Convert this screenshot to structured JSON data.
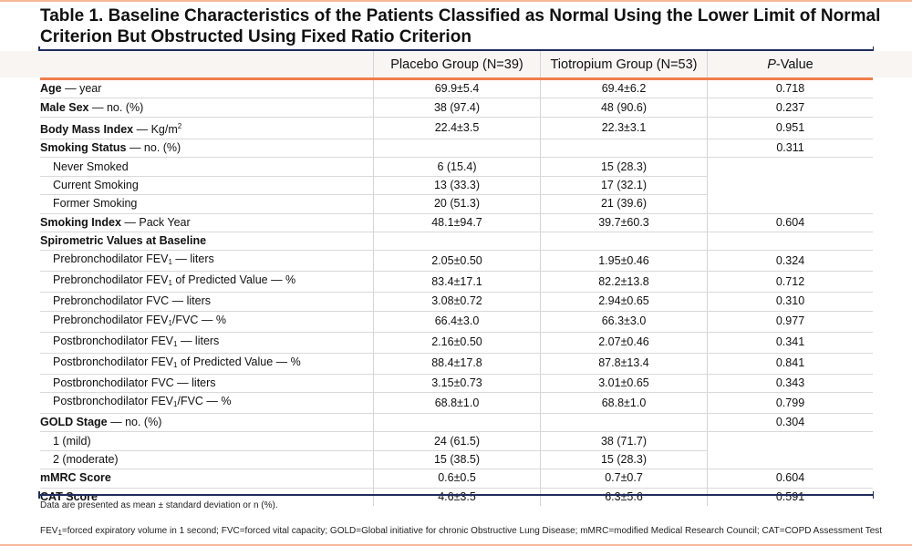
{
  "title": "Table 1. Baseline Characteristics of the Patients Classified as Normal Using the Lower Limit of Normal Criterion But Obstructed Using Fixed Ratio Criterion",
  "columns": {
    "label": "",
    "placebo": "Placebo Group (N=39)",
    "tiotropium": "Tiotropium Group (N=53)",
    "p_italic": "P",
    "p_rest": "-Value"
  },
  "rows": {
    "age": {
      "bold": "Age",
      "rest": " — year",
      "placebo": "69.9±5.4",
      "tiotropium": "69.4±6.2",
      "p": "0.718"
    },
    "male": {
      "bold": "Male Sex",
      "rest": " — no. (%)",
      "placebo": "38 (97.4)",
      "tiotropium": "48 (90.6)",
      "p": "0.237"
    },
    "bmi": {
      "bold": "Body Mass Index",
      "rest": " — Kg/m",
      "sup": "2",
      "placebo": "22.4±3.5",
      "tiotropium": "22.3±3.1",
      "p": "0.951"
    },
    "smoking": {
      "bold": "Smoking Status",
      "rest": " — no. (%)",
      "p": "0.311"
    },
    "never": {
      "label": "Never Smoked",
      "placebo": "6 (15.4)",
      "tiotropium": "15 (28.3)"
    },
    "current": {
      "label": "Current Smoking",
      "placebo": "13 (33.3)",
      "tiotropium": "17 (32.1)"
    },
    "former": {
      "label": "Former Smoking",
      "placebo": "20 (51.3)",
      "tiotropium": "21 (39.6)"
    },
    "index": {
      "bold": "Smoking Index",
      "rest": " — Pack Year",
      "placebo": "48.1±94.7",
      "tiotropium": "39.7±60.3",
      "p": "0.604"
    },
    "spiro": {
      "bold": "Spirometric Values at Baseline"
    },
    "s1": {
      "a": "Prebronchodilator FEV",
      "sub": "1",
      "b": " — liters",
      "placebo": "2.05±0.50",
      "tiotropium": "1.95±0.46",
      "p": "0.324"
    },
    "s2": {
      "a": "Prebronchodilator FEV",
      "sub": "1",
      "b": " of Predicted Value — %",
      "placebo": "83.4±17.1",
      "tiotropium": "82.2±13.8",
      "p": "0.712"
    },
    "s3": {
      "a": "Prebronchodilator FVC — liters",
      "placebo": "3.08±0.72",
      "tiotropium": "2.94±0.65",
      "p": "0.310"
    },
    "s4": {
      "a": "Prebronchodilator FEV",
      "sub": "1",
      "b": "/FVC — %",
      "placebo": "66.4±3.0",
      "tiotropium": "66.3±3.0",
      "p": "0.977"
    },
    "s5": {
      "a": "Postbronchodilator FEV",
      "sub": "1",
      "b": " — liters",
      "placebo": "2.16±0.50",
      "tiotropium": "2.07±0.46",
      "p": "0.341"
    },
    "s6": {
      "a": "Postbronchodilator FEV",
      "sub": "1",
      "b": " of Predicted Value — %",
      "placebo": "88.4±17.8",
      "tiotropium": "87.8±13.4",
      "p": "0.841"
    },
    "s7": {
      "a": "Postbronchodilator FVC — liters",
      "placebo": "3.15±0.73",
      "tiotropium": "3.01±0.65",
      "p": "0.343"
    },
    "s8": {
      "a": "Postbronchodilator FEV",
      "sub": "1",
      "b": "/FVC — %",
      "placebo": "68.8±1.0",
      "tiotropium": "68.8±1.0",
      "p": "0.799"
    },
    "gold": {
      "bold": "GOLD Stage",
      "rest": " — no. (%)",
      "p": "0.304"
    },
    "g1": {
      "label": "1 (mild)",
      "placebo": "24 (61.5)",
      "tiotropium": "38 (71.7)"
    },
    "g2": {
      "label": "2 (moderate)",
      "placebo": "15 (38.5)",
      "tiotropium": "15 (28.3)"
    },
    "mmrc": {
      "bold": "mMRC Score",
      "placebo": "0.6±0.5",
      "tiotropium": "0.7±0.7",
      "p": "0.604"
    },
    "cat": {
      "bold": "CAT Score",
      "placebo": "4.6±3.5",
      "tiotropium": "6.3±5.6",
      "p": "0.591"
    }
  },
  "notes": {
    "data": "Data are presented as mean ± standard deviation or n (%).",
    "abbr_a": "FEV",
    "abbr_sub": "1",
    "abbr_b": "=forced expiratory volume in 1 second; FVC=forced vital capacity; GOLD=Global initiative for chronic Obstructive Lung Disease; mMRC=modified Medical Research Council; CAT=COPD Assessment Test"
  },
  "colors": {
    "accent": "#ef7d4d",
    "rule": "#1f2d5c",
    "header_bg": "#f8f5f3"
  }
}
